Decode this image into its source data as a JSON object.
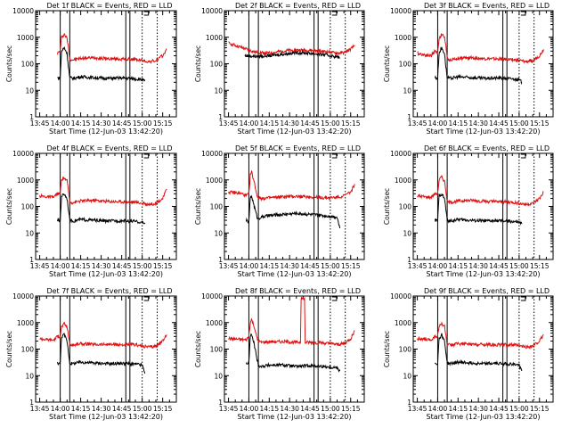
{
  "figure": {
    "red_color": "#e01010",
    "black_color": "#000000"
  },
  "chart_data": [
    {
      "type": "line",
      "title": "Det 1f BLACK = Events, RED = LLD",
      "xlabel": "Start Time (12-Jun-03 13:42:20)",
      "ylabel": "Counts/sec",
      "yscale": "log",
      "ylim": [
        1,
        10000
      ],
      "xticks": [
        "13:45",
        "14:00",
        "14:15",
        "14:30",
        "14:45",
        "15:00",
        "15:15"
      ],
      "yticks": [
        "1",
        "10",
        "100",
        "1000",
        "10000"
      ],
      "xrange_minutes": [
        -3,
        100
      ],
      "solid_markers_min": [
        15,
        22,
        63,
        66
      ],
      "dotted_markers_min": [
        75,
        86
      ],
      "series": [
        {
          "name": "RED = LLD",
          "color": "#e01010",
          "x": [
            13,
            15,
            16,
            18,
            20,
            21,
            22,
            24,
            30,
            40,
            50,
            60,
            70,
            80,
            85,
            90,
            93
          ],
          "y": [
            250,
            300,
            1000,
            1300,
            900,
            400,
            150,
            140,
            160,
            170,
            155,
            150,
            145,
            120,
            130,
            200,
            350
          ]
        },
        {
          "name": "BLACK = Events",
          "color": "#000000",
          "x": [
            13,
            15,
            16,
            18,
            20,
            21,
            22,
            24,
            30,
            40,
            50,
            60,
            70,
            75,
            77
          ],
          "y": [
            30,
            28,
            300,
            400,
            250,
            80,
            30,
            28,
            32,
            30,
            28,
            29,
            27,
            25,
            22
          ]
        }
      ]
    },
    {
      "type": "line",
      "title": "Det 2f BLACK = Events, RED = LLD",
      "xlabel": "Start Time (12-Jun-03 13:42:20)",
      "ylabel": "Counts/sec",
      "yscale": "log",
      "ylim": [
        1,
        10000
      ],
      "xticks": [
        "13:45",
        "14:00",
        "14:15",
        "14:30",
        "14:45",
        "15:00",
        "15:15"
      ],
      "yticks": [
        "1",
        "10",
        "100",
        "1000",
        "10000"
      ],
      "xrange_minutes": [
        -3,
        100
      ],
      "solid_markers_min": [
        15,
        22,
        63,
        66
      ],
      "dotted_markers_min": [
        75,
        86
      ],
      "series": [
        {
          "name": "RED = LLD",
          "color": "#e01010",
          "x": [
            0,
            10,
            20,
            30,
            40,
            50,
            60,
            70,
            80,
            85,
            90,
            93
          ],
          "y": [
            600,
            400,
            270,
            250,
            300,
            330,
            320,
            290,
            250,
            260,
            350,
            500
          ]
        },
        {
          "name": "BLACK = Events",
          "color": "#000000",
          "x": [
            12,
            20,
            30,
            40,
            50,
            60,
            70,
            80,
            82
          ],
          "y": [
            200,
            190,
            200,
            230,
            260,
            250,
            220,
            180,
            170
          ]
        }
      ]
    },
    {
      "type": "line",
      "title": "Det 3f BLACK = Events, RED = LLD",
      "xlabel": "Start Time (12-Jun-03 13:42:20)",
      "ylabel": "Counts/sec",
      "yscale": "log",
      "ylim": [
        1,
        10000
      ],
      "xticks": [
        "13:45",
        "14:00",
        "14:15",
        "14:30",
        "14:45",
        "15:00",
        "15:15"
      ],
      "yticks": [
        "1",
        "10",
        "100",
        "1000",
        "10000"
      ],
      "xrange_minutes": [
        -3,
        100
      ],
      "solid_markers_min": [
        15,
        22,
        63,
        66
      ],
      "dotted_markers_min": [
        75,
        86
      ],
      "series": [
        {
          "name": "RED = LLD",
          "color": "#e01010",
          "x": [
            0,
            5,
            10,
            13,
            15,
            16,
            18,
            20,
            21,
            22,
            24,
            30,
            40,
            50,
            60,
            70,
            80,
            85,
            90,
            93
          ],
          "y": [
            250,
            220,
            200,
            300,
            250,
            900,
            1300,
            1000,
            500,
            150,
            140,
            160,
            170,
            155,
            150,
            145,
            120,
            130,
            200,
            350
          ]
        },
        {
          "name": "BLACK = Events",
          "color": "#000000",
          "x": [
            13,
            15,
            16,
            18,
            20,
            21,
            22,
            24,
            30,
            40,
            50,
            60,
            70,
            75,
            77
          ],
          "y": [
            30,
            28,
            250,
            400,
            250,
            80,
            30,
            28,
            32,
            30,
            28,
            29,
            27,
            25,
            20
          ]
        }
      ]
    },
    {
      "type": "line",
      "title": "Det 4f BLACK = Events, RED = LLD",
      "xlabel": "Start Time (12-Jun-03 13:42:20)",
      "ylabel": "Counts/sec",
      "yscale": "log",
      "ylim": [
        1,
        10000
      ],
      "xticks": [
        "13:45",
        "14:00",
        "14:15",
        "14:30",
        "14:45",
        "15:00",
        "15:15"
      ],
      "yticks": [
        "1",
        "10",
        "100",
        "1000",
        "10000"
      ],
      "xrange_minutes": [
        -3,
        100
      ],
      "solid_markers_min": [
        15,
        22,
        63,
        66
      ],
      "dotted_markers_min": [
        75,
        86
      ],
      "series": [
        {
          "name": "RED = LLD",
          "color": "#e01010",
          "x": [
            0,
            5,
            10,
            13,
            15,
            16,
            18,
            20,
            21,
            22,
            24,
            30,
            40,
            50,
            60,
            70,
            80,
            85,
            90,
            93
          ],
          "y": [
            250,
            230,
            220,
            300,
            300,
            1000,
            1200,
            900,
            400,
            150,
            140,
            160,
            170,
            155,
            150,
            145,
            120,
            130,
            200,
            450
          ]
        },
        {
          "name": "BLACK = Events",
          "color": "#000000",
          "x": [
            13,
            15,
            16,
            18,
            20,
            21,
            22,
            24,
            30,
            40,
            50,
            60,
            70,
            75,
            77
          ],
          "y": [
            30,
            28,
            250,
            300,
            200,
            80,
            30,
            28,
            32,
            30,
            28,
            29,
            27,
            25,
            22
          ]
        }
      ]
    },
    {
      "type": "line",
      "title": "Det 5f BLACK = Events, RED = LLD",
      "xlabel": "Start Time (12-Jun-03 13:42:20)",
      "ylabel": "Counts/sec",
      "yscale": "log",
      "ylim": [
        1,
        10000
      ],
      "xticks": [
        "13:45",
        "14:00",
        "14:15",
        "14:30",
        "14:45",
        "15:00",
        "15:15"
      ],
      "yticks": [
        "1",
        "10",
        "100",
        "1000",
        "10000"
      ],
      "xrange_minutes": [
        -3,
        100
      ],
      "solid_markers_min": [
        15,
        22,
        63,
        66
      ],
      "dotted_markers_min": [
        75,
        86
      ],
      "series": [
        {
          "name": "RED = LLD",
          "color": "#e01010",
          "x": [
            0,
            10,
            13,
            15,
            16,
            17,
            19,
            21,
            22,
            24,
            30,
            40,
            50,
            60,
            70,
            80,
            85,
            90,
            93
          ],
          "y": [
            350,
            300,
            250,
            300,
            1500,
            2000,
            800,
            250,
            220,
            200,
            210,
            230,
            240,
            230,
            210,
            220,
            250,
            350,
            700
          ]
        },
        {
          "name": "BLACK = Events",
          "color": "#000000",
          "x": [
            13,
            15,
            16,
            17,
            19,
            21,
            22,
            24,
            30,
            40,
            50,
            60,
            70,
            80,
            82
          ],
          "y": [
            30,
            25,
            200,
            250,
            100,
            40,
            35,
            40,
            45,
            50,
            55,
            50,
            45,
            40,
            15
          ]
        }
      ]
    },
    {
      "type": "line",
      "title": "Det 6f BLACK = Events, RED = LLD",
      "xlabel": "Start Time (12-Jun-03 13:42:20)",
      "ylabel": "Counts/sec",
      "yscale": "log",
      "ylim": [
        1,
        10000
      ],
      "xticks": [
        "13:45",
        "14:00",
        "14:15",
        "14:30",
        "14:45",
        "15:00",
        "15:15"
      ],
      "yticks": [
        "1",
        "10",
        "100",
        "1000",
        "10000"
      ],
      "xrange_minutes": [
        -3,
        100
      ],
      "solid_markers_min": [
        15,
        22,
        63,
        66
      ],
      "dotted_markers_min": [
        75,
        86
      ],
      "series": [
        {
          "name": "RED = LLD",
          "color": "#e01010",
          "x": [
            0,
            5,
            10,
            13,
            15,
            16,
            18,
            20,
            21,
            22,
            24,
            30,
            40,
            50,
            60,
            70,
            80,
            85,
            90,
            93
          ],
          "y": [
            250,
            230,
            220,
            300,
            300,
            1000,
            1300,
            900,
            400,
            150,
            140,
            160,
            170,
            155,
            150,
            145,
            120,
            130,
            200,
            350
          ]
        },
        {
          "name": "BLACK = Events",
          "color": "#000000",
          "x": [
            13,
            15,
            16,
            18,
            20,
            21,
            22,
            24,
            30,
            40,
            50,
            60,
            70,
            75,
            77
          ],
          "y": [
            30,
            28,
            250,
            300,
            200,
            80,
            30,
            28,
            32,
            30,
            28,
            29,
            27,
            25,
            22
          ]
        }
      ]
    },
    {
      "type": "line",
      "title": "Det 7f BLACK = Events, RED = LLD",
      "xlabel": "Start Time (12-Jun-03 13:42:20)",
      "ylabel": "Counts/sec",
      "yscale": "log",
      "ylim": [
        1,
        10000
      ],
      "xticks": [
        "13:45",
        "14:00",
        "14:15",
        "14:30",
        "14:45",
        "15:00",
        "15:15"
      ],
      "yticks": [
        "1",
        "10",
        "100",
        "1000",
        "10000"
      ],
      "xrange_minutes": [
        -3,
        100
      ],
      "solid_markers_min": [
        15,
        22,
        63,
        66
      ],
      "dotted_markers_min": [
        75,
        86
      ],
      "series": [
        {
          "name": "RED = LLD",
          "color": "#e01010",
          "x": [
            0,
            5,
            10,
            13,
            15,
            16,
            18,
            20,
            21,
            22,
            24,
            30,
            40,
            50,
            60,
            70,
            80,
            85,
            90,
            93
          ],
          "y": [
            250,
            230,
            220,
            300,
            300,
            700,
            900,
            700,
            350,
            150,
            140,
            160,
            150,
            150,
            145,
            145,
            120,
            130,
            200,
            350
          ]
        },
        {
          "name": "BLACK = Events",
          "color": "#000000",
          "x": [
            13,
            15,
            16,
            18,
            20,
            21,
            22,
            24,
            30,
            40,
            50,
            60,
            70,
            75,
            77
          ],
          "y": [
            30,
            28,
            300,
            350,
            200,
            80,
            30,
            28,
            32,
            30,
            28,
            29,
            27,
            25,
            12
          ]
        }
      ]
    },
    {
      "type": "line",
      "title": "Det 8f BLACK = Events, RED = LLD",
      "xlabel": "Start Time (12-Jun-03 13:42:20)",
      "ylabel": "Counts/sec",
      "yscale": "log",
      "ylim": [
        1,
        10000
      ],
      "xticks": [
        "13:45",
        "14:00",
        "14:15",
        "14:30",
        "14:45",
        "15:00",
        "15:15"
      ],
      "yticks": [
        "1",
        "10",
        "100",
        "1000",
        "10000"
      ],
      "xrange_minutes": [
        -3,
        100
      ],
      "solid_markers_min": [
        15,
        22,
        63,
        66
      ],
      "dotted_markers_min": [
        75,
        86
      ],
      "series": [
        {
          "name": "RED = LLD",
          "color": "#e01010",
          "x": [
            0,
            10,
            13,
            15,
            16,
            17,
            19,
            21,
            22,
            24,
            30,
            40,
            50,
            53,
            53.5,
            56,
            56.5,
            60,
            70,
            80,
            85,
            90,
            93
          ],
          "y": [
            250,
            230,
            220,
            300,
            1000,
            1300,
            700,
            250,
            200,
            180,
            190,
            190,
            180,
            180,
            8000,
            8000,
            180,
            180,
            170,
            150,
            160,
            250,
            500
          ]
        },
        {
          "name": "BLACK = Events",
          "color": "#000000",
          "x": [
            13,
            15,
            16,
            17,
            19,
            21,
            22,
            24,
            30,
            40,
            50,
            60,
            70,
            80,
            82
          ],
          "y": [
            30,
            28,
            300,
            350,
            150,
            40,
            25,
            22,
            25,
            25,
            22,
            24,
            22,
            20,
            15
          ]
        }
      ]
    },
    {
      "type": "line",
      "title": "Det 9f BLACK = Events, RED = LLD",
      "xlabel": "Start Time (12-Jun-03 13:42:20)",
      "ylabel": "Counts/sec",
      "yscale": "log",
      "ylim": [
        1,
        10000
      ],
      "xticks": [
        "13:45",
        "14:00",
        "14:15",
        "14:30",
        "14:45",
        "15:00",
        "15:15"
      ],
      "yticks": [
        "1",
        "10",
        "100",
        "1000",
        "10000"
      ],
      "xrange_minutes": [
        -3,
        100
      ],
      "solid_markers_min": [
        15,
        22,
        63,
        66
      ],
      "dotted_markers_min": [
        75,
        86
      ],
      "series": [
        {
          "name": "RED = LLD",
          "color": "#e01010",
          "x": [
            0,
            5,
            10,
            13,
            15,
            16,
            18,
            20,
            21,
            22,
            24,
            30,
            40,
            50,
            60,
            70,
            80,
            85,
            90,
            93
          ],
          "y": [
            250,
            230,
            220,
            300,
            300,
            700,
            900,
            700,
            350,
            150,
            140,
            160,
            150,
            150,
            145,
            145,
            120,
            130,
            200,
            350
          ]
        },
        {
          "name": "BLACK = Events",
          "color": "#000000",
          "x": [
            13,
            15,
            16,
            18,
            20,
            21,
            22,
            24,
            30,
            40,
            50,
            60,
            70,
            75,
            77
          ],
          "y": [
            30,
            28,
            250,
            350,
            200,
            80,
            30,
            28,
            32,
            30,
            28,
            29,
            27,
            25,
            15
          ]
        }
      ]
    }
  ]
}
